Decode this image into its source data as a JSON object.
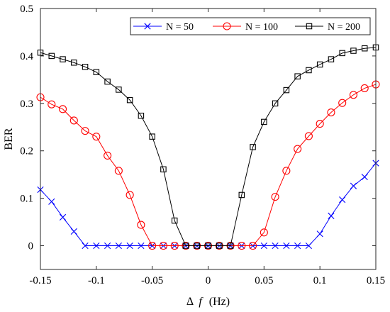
{
  "chart_data": {
    "type": "line",
    "xlabel_symbol": "Δ",
    "xlabel_var": "f",
    "xlabel_unit": "(Hz)",
    "ylabel": "BER",
    "xlim": [
      -0.15,
      0.15
    ],
    "ylim": [
      -0.05,
      0.5
    ],
    "xticks": [
      -0.15,
      -0.1,
      -0.05,
      0,
      0.05,
      0.1,
      0.15
    ],
    "xtick_labels": [
      "-0.15",
      "-0.1",
      "-0.05",
      "0",
      "0.05",
      "0.1",
      "0.15"
    ],
    "yticks": [
      0,
      0.1,
      0.2,
      0.3,
      0.4,
      0.5
    ],
    "ytick_labels": [
      "0",
      "0.1",
      "0.2",
      "0.3",
      "0.4",
      "0.5"
    ],
    "legend_position": "top-right",
    "x": [
      -0.15,
      -0.14,
      -0.13,
      -0.12,
      -0.11,
      -0.1,
      -0.09,
      -0.08,
      -0.07,
      -0.06,
      -0.05,
      -0.04,
      -0.03,
      -0.02,
      -0.01,
      0,
      0.01,
      0.02,
      0.03,
      0.04,
      0.05,
      0.06,
      0.07,
      0.08,
      0.09,
      0.1,
      0.11,
      0.12,
      0.13,
      0.14,
      0.15
    ],
    "series": [
      {
        "name": "N = 50",
        "color": "#0000ff",
        "marker": "x",
        "values": [
          0.118,
          0.093,
          0.06,
          0.03,
          0,
          0,
          0,
          0,
          0,
          0,
          0,
          0,
          0,
          0,
          0,
          0,
          0,
          0,
          0,
          0,
          0,
          0,
          0,
          0,
          0,
          0.025,
          0.063,
          0.097,
          0.126,
          0.145,
          0.174
        ]
      },
      {
        "name": "N = 100",
        "color": "#ff0000",
        "marker": "circle",
        "values": [
          0.313,
          0.298,
          0.288,
          0.264,
          0.242,
          0.23,
          0.19,
          0.158,
          0.107,
          0.044,
          0,
          0,
          0,
          0,
          0,
          0,
          0,
          0,
          0,
          0,
          0.028,
          0.103,
          0.158,
          0.204,
          0.231,
          0.257,
          0.281,
          0.301,
          0.318,
          0.332,
          0.34
        ]
      },
      {
        "name": "N = 200",
        "color": "#000000",
        "marker": "square",
        "values": [
          0.407,
          0.4,
          0.393,
          0.386,
          0.377,
          0.366,
          0.346,
          0.329,
          0.307,
          0.274,
          0.23,
          0.161,
          0.053,
          0,
          0,
          0,
          0,
          0,
          0.107,
          0.208,
          0.261,
          0.3,
          0.328,
          0.357,
          0.37,
          0.382,
          0.393,
          0.406,
          0.411,
          0.416,
          0.418
        ]
      }
    ]
  }
}
